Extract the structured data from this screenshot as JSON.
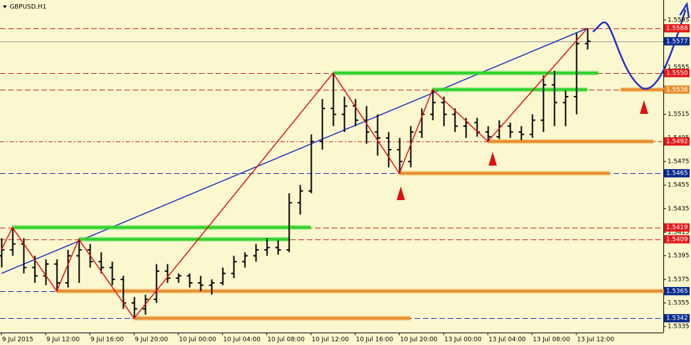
{
  "chart_data": {
    "type": "ohlc",
    "title": "GBPUSD,H1",
    "categories": [
      "9 Jul 2015",
      null,
      null,
      null,
      "9 Jul 12:00",
      null,
      null,
      null,
      "9 Jul 16:00",
      null,
      null,
      null,
      "9 Jul 20:00",
      null,
      null,
      null,
      "10 Jul 00:00",
      null,
      null,
      null,
      "10 Jul 04:00",
      null,
      null,
      null,
      "10 Jul 08:00",
      null,
      null,
      null,
      "10 Jul 12:00",
      null,
      null,
      null,
      "10 Jul 16:00",
      null,
      null,
      null,
      "10 Jul 20:00",
      null,
      null,
      null,
      "13 Jul 00:00",
      null,
      null,
      null,
      "13 Jul 04:00",
      null,
      null,
      null,
      "13 Jul 08:00",
      null,
      null,
      null,
      "13 Jul 12:00",
      null
    ],
    "open": [
      1.5395,
      1.54,
      1.5405,
      1.5385,
      1.5378,
      1.5388,
      1.5372,
      1.5395,
      1.54,
      1.539,
      1.5385,
      1.5375,
      1.5355,
      1.535,
      1.5358,
      1.5382,
      1.5376,
      1.5378,
      1.5372,
      1.537,
      1.5372,
      1.538,
      1.539,
      1.5395,
      1.54,
      1.5402,
      1.54,
      1.544,
      1.545,
      1.5492,
      1.552,
      1.5515,
      1.5522,
      1.551,
      1.55,
      1.5495,
      1.5485,
      1.5475,
      1.55,
      1.5515,
      1.5525,
      1.5515,
      1.5505,
      1.5508,
      1.55,
      1.5496,
      1.5505,
      1.55,
      1.5498,
      1.551,
      1.554,
      1.5525,
      1.553,
      1.5575
    ],
    "high": [
      1.541,
      1.5419,
      1.541,
      1.5395,
      1.5392,
      1.5392,
      1.54,
      1.5409,
      1.5405,
      1.5398,
      1.539,
      1.5378,
      1.536,
      1.5362,
      1.5388,
      1.5388,
      1.538,
      1.538,
      1.5378,
      1.5375,
      1.5385,
      1.5395,
      1.5398,
      1.5405,
      1.541,
      1.5408,
      1.5448,
      1.5455,
      1.5498,
      1.5528,
      1.555,
      1.553,
      1.5528,
      1.5522,
      1.5515,
      1.55,
      1.5495,
      1.5505,
      1.552,
      1.5536,
      1.553,
      1.552,
      1.5512,
      1.5512,
      1.5505,
      1.551,
      1.5508,
      1.5505,
      1.5515,
      1.5548,
      1.5552,
      1.5535,
      1.5584,
      1.5588
    ],
    "low": [
      1.5385,
      1.5395,
      1.538,
      1.5372,
      1.537,
      1.5365,
      1.5368,
      1.5372,
      1.5385,
      1.538,
      1.537,
      1.535,
      1.5342,
      1.5345,
      1.5355,
      1.5372,
      1.5372,
      1.5368,
      1.5365,
      1.5362,
      1.537,
      1.5376,
      1.5385,
      1.539,
      1.5395,
      1.5396,
      1.5398,
      1.543,
      1.5448,
      1.5485,
      1.5505,
      1.55,
      1.5505,
      1.549,
      1.548,
      1.547,
      1.5465,
      1.547,
      1.5495,
      1.551,
      1.5505,
      1.55,
      1.5495,
      1.5496,
      1.5492,
      1.5494,
      1.5495,
      1.5493,
      1.5495,
      1.55,
      1.5505,
      1.5505,
      1.5515,
      1.557
    ],
    "close": [
      1.54,
      1.5405,
      1.5385,
      1.5378,
      1.5388,
      1.5372,
      1.5395,
      1.54,
      1.539,
      1.5385,
      1.5375,
      1.5355,
      1.535,
      1.5358,
      1.5382,
      1.5376,
      1.5378,
      1.5372,
      1.537,
      1.5372,
      1.538,
      1.539,
      1.5395,
      1.54,
      1.5402,
      1.54,
      1.544,
      1.545,
      1.5492,
      1.552,
      1.5515,
      1.5522,
      1.551,
      1.55,
      1.5495,
      1.5485,
      1.5475,
      1.55,
      1.5515,
      1.5525,
      1.5515,
      1.5505,
      1.5508,
      1.55,
      1.5496,
      1.5505,
      1.55,
      1.5498,
      1.551,
      1.554,
      1.5525,
      1.553,
      1.5575,
      1.5577
    ],
    "color": "#000000",
    "ylim": [
      1.5331,
      1.5612
    ],
    "yticks": [
      1.5595,
      1.5575,
      1.5555,
      1.5535,
      1.5515,
      1.5495,
      1.5475,
      1.5455,
      1.5435,
      1.5415,
      1.5395,
      1.5375,
      1.5355,
      1.5335
    ],
    "levels": [
      {
        "value": 1.5588,
        "label": "1.5588",
        "color": "#e31b1b",
        "line_color": "#d42020",
        "style": "dash"
      },
      {
        "value": 1.5577,
        "label": "1.5577",
        "color": "#0a2a8c",
        "line_color": "#9a9a9a",
        "style": "solid"
      },
      {
        "value": 1.555,
        "label": "1.5550",
        "color": "#e31b1b",
        "line_color": "#d42020",
        "style": "dash"
      },
      {
        "value": 1.5536,
        "label": "1.5536",
        "color": "#e8902e",
        "line_color": "#d42020",
        "style": "dash"
      },
      {
        "value": 1.5492,
        "label": "1.5492",
        "color": "#e31b1b",
        "line_color": "#d42020",
        "style": "dashdot"
      },
      {
        "value": 1.5465,
        "label": "1.5465",
        "color": "#0a2a8c",
        "line_color": "#2030c0",
        "style": "dash"
      },
      {
        "value": 1.5419,
        "label": "1.5419",
        "color": "#e31b1b",
        "line_color": "#d42020",
        "style": "dash"
      },
      {
        "value": 1.5409,
        "label": "1.5409",
        "color": "#e31b1b",
        "line_color": "#d42020",
        "style": "dash"
      },
      {
        "value": 1.5365,
        "label": "1.5365",
        "color": "#0a2a8c",
        "line_color": "#2030c0",
        "style": "dash"
      },
      {
        "value": 1.5342,
        "label": "1.5342",
        "color": "#0a2a8c",
        "line_color": "#2030c0",
        "style": "dash"
      }
    ],
    "zones": [
      {
        "level": 2,
        "from_bar": 30,
        "to_bar": 54,
        "color": "#2fd42f"
      },
      {
        "level": 3,
        "from_bar": 39,
        "to_bar": 53,
        "color": "#2fd42f"
      },
      {
        "level": 6,
        "from_bar": 1,
        "to_bar": 28,
        "color": "#2fd42f"
      },
      {
        "level": 7,
        "from_bar": 7,
        "to_bar": 26,
        "color": "#2fd42f"
      },
      {
        "level": 8,
        "from_bar": 5,
        "to_bar": 60,
        "color": "#e8902e"
      },
      {
        "level": 9,
        "from_bar": 12,
        "to_bar": 37,
        "color": "#e8902e"
      },
      {
        "level": 5,
        "from_bar": 36,
        "to_bar": 55,
        "color": "#e8902e"
      },
      {
        "level": 4,
        "from_bar": 44,
        "to_bar": 59,
        "color": "#e8902e"
      },
      {
        "level": 3,
        "from_bar": 56,
        "to_bar": 61,
        "color": "#e8902e"
      }
    ],
    "zigzag": [
      {
        "bar": 0,
        "kind": "close"
      },
      {
        "bar": 1,
        "kind": "high"
      },
      {
        "bar": 5,
        "kind": "low"
      },
      {
        "bar": 7,
        "kind": "high"
      },
      {
        "bar": 12,
        "kind": "low"
      },
      {
        "bar": 30,
        "kind": "high"
      },
      {
        "bar": 36,
        "kind": "low"
      },
      {
        "bar": 39,
        "kind": "high"
      },
      {
        "bar": 44,
        "kind": "low"
      },
      {
        "bar": 53,
        "kind": "high"
      }
    ],
    "zigzag_color": "#e01010",
    "trendline": {
      "from_bar": 0,
      "from_price": 1.538,
      "to_bar": 53,
      "to_price": 1.5588,
      "color": "#1f2fc8"
    }
  }
}
